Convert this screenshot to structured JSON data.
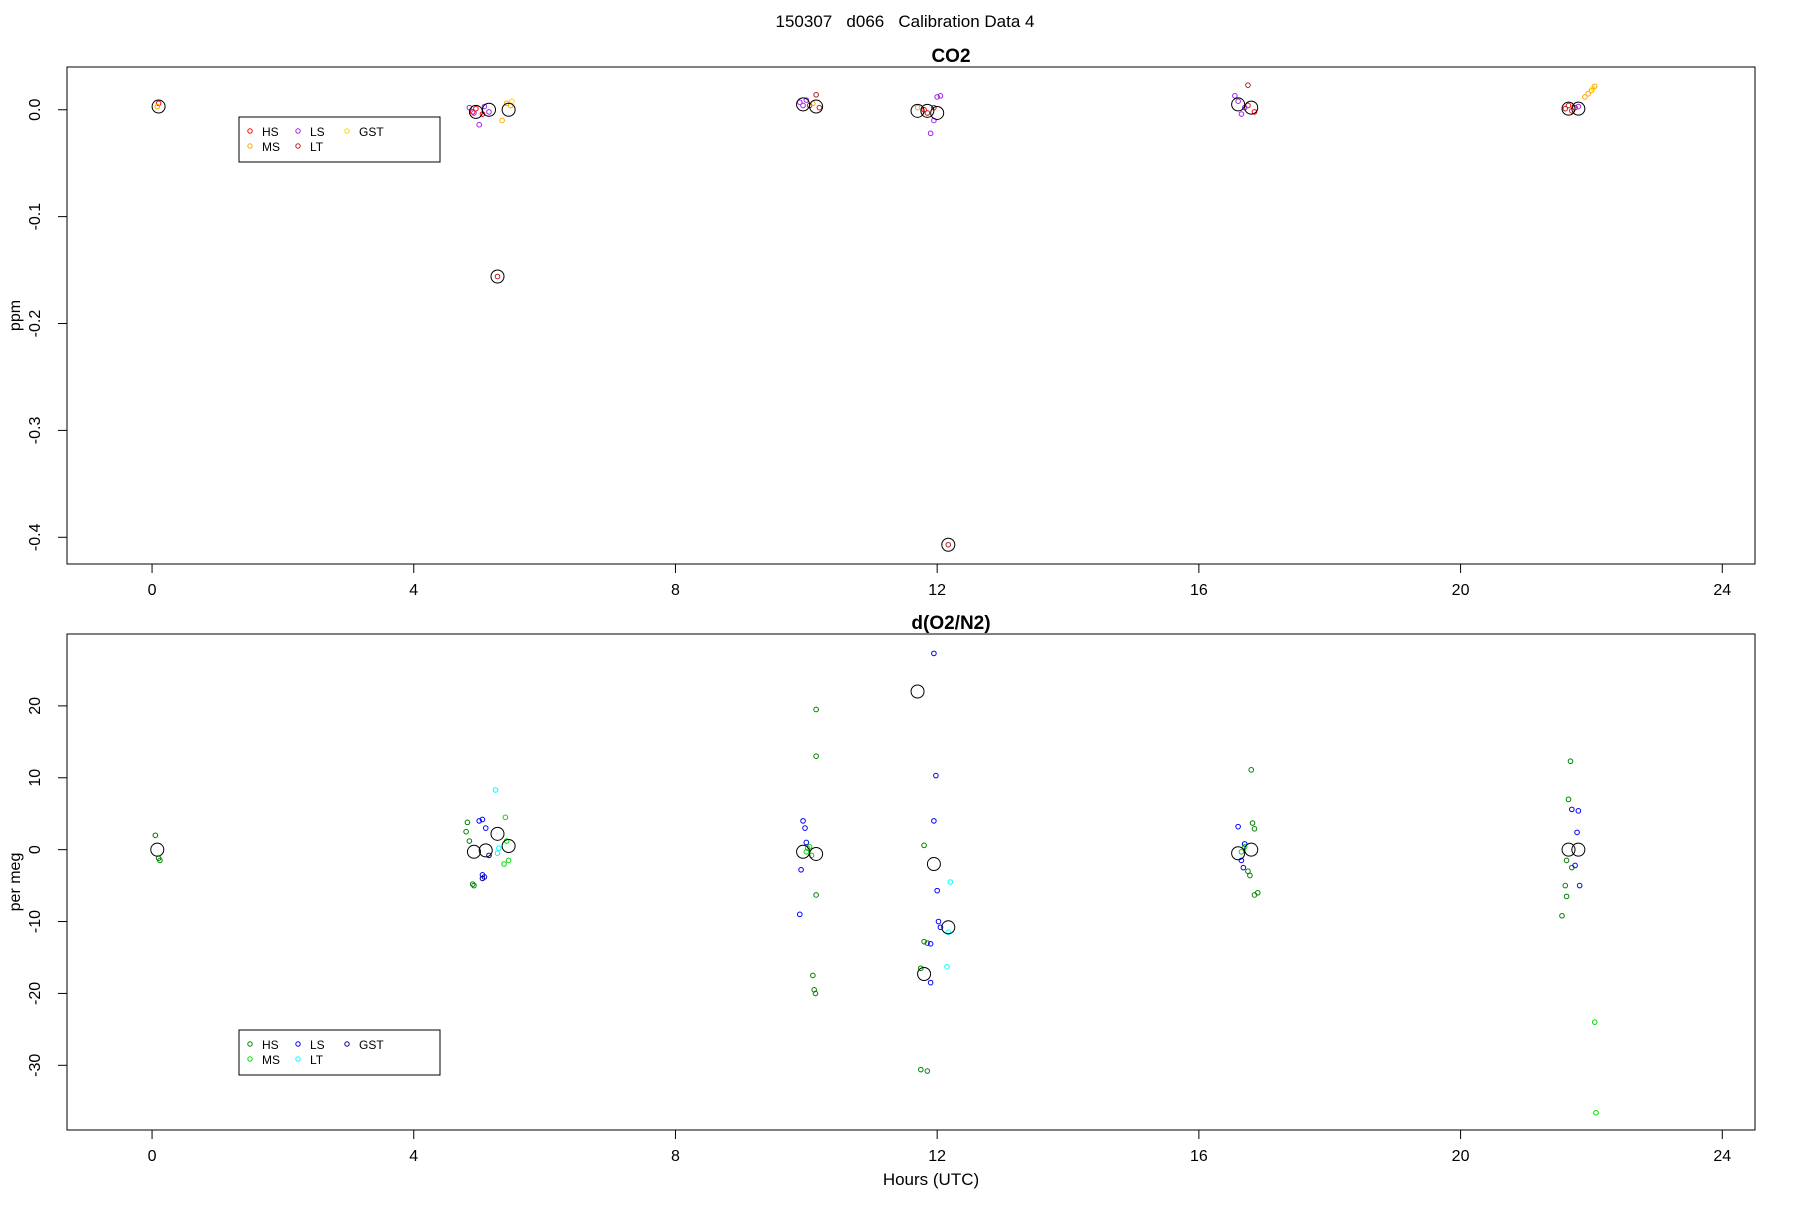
{
  "figure": {
    "title": "150307   d066   Calibration Data 4"
  },
  "chart_data": [
    {
      "type": "scatter",
      "title": "CO2",
      "xlabel": "",
      "ylabel": "ppm",
      "xlim": [
        -1.3,
        24.5
      ],
      "ylim": [
        -0.425,
        0.04
      ],
      "xticks": [
        0,
        4,
        8,
        12,
        16,
        20,
        24
      ],
      "xtick_labels": [
        "0",
        "4",
        "8",
        "12",
        "16",
        "20",
        "24"
      ],
      "yticks": [
        0.0,
        -0.1,
        -0.2,
        -0.3,
        -0.4
      ],
      "ytick_labels": [
        "0.0",
        "-0.1",
        "-0.2",
        "-0.3",
        "-0.4"
      ],
      "grid": false,
      "legend": {
        "placement": "top-left",
        "entries": [
          {
            "name": "HS",
            "color": "#ff0000"
          },
          {
            "name": "MS",
            "color": "#ffa500"
          },
          {
            "name": "LS",
            "color": "#a020f0"
          },
          {
            "name": "LT",
            "color": "#b22222"
          },
          {
            "name": "GST",
            "color": "#ffd700"
          }
        ]
      },
      "series": [
        {
          "name": "HS",
          "color": "#ff0000",
          "points": [
            [
              0.1,
              0.006
            ],
            [
              4.9,
              -0.002
            ],
            [
              4.95,
              0.001
            ],
            [
              5.05,
              -0.004
            ],
            [
              10.05,
              0.004
            ],
            [
              10.2,
              0.002
            ],
            [
              11.8,
              0.0
            ],
            [
              11.85,
              -0.003
            ],
            [
              11.95,
              0.002
            ],
            [
              16.75,
              0.004
            ],
            [
              16.85,
              -0.002
            ],
            [
              21.65,
              0.004
            ],
            [
              21.7,
              -0.001
            ],
            [
              21.75,
              0.002
            ]
          ]
        },
        {
          "name": "MS",
          "color": "#ffa500",
          "points": [
            [
              0.08,
              0.003
            ],
            [
              5.35,
              -0.01
            ],
            [
              5.42,
              0.006
            ],
            [
              5.48,
              0.004
            ],
            [
              10.1,
              0.006
            ],
            [
              11.7,
              0.002
            ],
            [
              21.9,
              0.012
            ],
            [
              21.95,
              0.015
            ],
            [
              22.0,
              0.018
            ],
            [
              22.05,
              0.022
            ]
          ]
        },
        {
          "name": "LS",
          "color": "#a020f0",
          "points": [
            [
              4.85,
              0.002
            ],
            [
              4.92,
              -0.003
            ],
            [
              5.0,
              -0.014
            ],
            [
              5.08,
              0.003
            ],
            [
              5.15,
              -0.002
            ],
            [
              9.9,
              0.007
            ],
            [
              9.95,
              0.004
            ],
            [
              10.0,
              0.009
            ],
            [
              11.9,
              -0.022
            ],
            [
              11.95,
              -0.01
            ],
            [
              12.0,
              0.012
            ],
            [
              12.05,
              0.013
            ],
            [
              16.55,
              0.013
            ],
            [
              16.6,
              0.008
            ],
            [
              16.65,
              -0.004
            ],
            [
              16.7,
              0.002
            ],
            [
              21.8,
              0.003
            ]
          ]
        },
        {
          "name": "LT",
          "color": "#b22222",
          "points": [
            [
              5.28,
              -0.156
            ],
            [
              10.15,
              0.014
            ],
            [
              12.17,
              -0.407
            ],
            [
              16.75,
              0.023
            ],
            [
              21.6,
              0.001
            ]
          ]
        },
        {
          "name": "GST",
          "color": "#ffd700",
          "points": [
            [
              5.5,
              0.008
            ],
            [
              22.02,
              0.02
            ]
          ]
        }
      ],
      "means": [
        [
          0.1,
          0.003
        ],
        [
          4.95,
          -0.002
        ],
        [
          5.15,
          0.0
        ],
        [
          5.28,
          -0.156
        ],
        [
          5.45,
          0.0
        ],
        [
          9.95,
          0.005
        ],
        [
          10.15,
          0.003
        ],
        [
          11.7,
          -0.001
        ],
        [
          11.85,
          -0.001
        ],
        [
          12.0,
          -0.003
        ],
        [
          12.17,
          -0.407
        ],
        [
          16.6,
          0.005
        ],
        [
          16.8,
          0.002
        ],
        [
          21.65,
          0.001
        ],
        [
          21.8,
          0.001
        ]
      ]
    },
    {
      "type": "scatter",
      "title": "d(O2/N2)",
      "xlabel": "Hours (UTC)",
      "ylabel": "per meg",
      "xlim": [
        -1.3,
        24.5
      ],
      "ylim": [
        -39,
        30
      ],
      "xticks": [
        0,
        4,
        8,
        12,
        16,
        20,
        24
      ],
      "xtick_labels": [
        "0",
        "4",
        "8",
        "12",
        "16",
        "20",
        "24"
      ],
      "yticks": [
        20,
        10,
        0,
        -10,
        -20,
        -30
      ],
      "ytick_labels": [
        "20",
        "10",
        "0",
        "-10",
        "-20",
        "-30"
      ],
      "grid": false,
      "legend": {
        "placement": "bottom-left",
        "entries": [
          {
            "name": "HS",
            "color": "#008000"
          },
          {
            "name": "MS",
            "color": "#00dd00"
          },
          {
            "name": "LS",
            "color": "#0000ff"
          },
          {
            "name": "LT",
            "color": "#00ffff"
          },
          {
            "name": "GST",
            "color": "#000099"
          }
        ]
      },
      "series": [
        {
          "name": "HS",
          "color": "#008000",
          "points": [
            [
              0.05,
              2.0
            ],
            [
              0.1,
              -1.2
            ],
            [
              0.12,
              -1.5
            ],
            [
              4.8,
              2.5
            ],
            [
              4.82,
              3.8
            ],
            [
              4.85,
              1.2
            ],
            [
              4.9,
              -4.8
            ],
            [
              4.92,
              -5.0
            ],
            [
              10.15,
              -6.3
            ],
            [
              10.15,
              13.0
            ],
            [
              10.15,
              19.5
            ],
            [
              10.1,
              -17.5
            ],
            [
              10.12,
              -19.5
            ],
            [
              10.14,
              -20.0
            ],
            [
              11.75,
              -30.6
            ],
            [
              11.85,
              -30.8
            ],
            [
              11.8,
              -12.8
            ],
            [
              11.85,
              -13.0
            ],
            [
              11.8,
              0.6
            ],
            [
              11.75,
              -16.5
            ],
            [
              16.85,
              -6.3
            ],
            [
              16.9,
              -6.0
            ],
            [
              16.8,
              11.1
            ],
            [
              16.82,
              3.7
            ],
            [
              16.85,
              2.9
            ],
            [
              16.75,
              -3.0
            ],
            [
              16.78,
              -3.6
            ],
            [
              21.6,
              -5.0
            ],
            [
              21.62,
              -6.5
            ],
            [
              21.55,
              -9.2
            ],
            [
              21.65,
              7.0
            ],
            [
              21.68,
              12.3
            ],
            [
              21.7,
              -2.5
            ],
            [
              21.62,
              -1.5
            ]
          ]
        },
        {
          "name": "MS",
          "color": "#00dd00",
          "points": [
            [
              5.4,
              4.5
            ],
            [
              5.42,
              1.2
            ],
            [
              5.38,
              -2.0
            ],
            [
              5.45,
              -1.5
            ],
            [
              10.05,
              0.4
            ],
            [
              10.0,
              -0.3
            ],
            [
              10.08,
              -0.8
            ],
            [
              10.02,
              0.2
            ],
            [
              22.05,
              -24.0
            ],
            [
              22.07,
              -36.6
            ],
            [
              16.65,
              -0.3
            ],
            [
              16.7,
              0.4
            ]
          ]
        },
        {
          "name": "LS",
          "color": "#0000ff",
          "points": [
            [
              5.0,
              4.0
            ],
            [
              5.05,
              4.2
            ],
            [
              5.1,
              3.0
            ],
            [
              5.05,
              -3.5
            ],
            [
              5.08,
              -3.8
            ],
            [
              9.9,
              -9.0
            ],
            [
              9.95,
              4.0
            ],
            [
              9.98,
              3.0
            ],
            [
              10.0,
              1.0
            ],
            [
              9.92,
              -2.8
            ],
            [
              11.95,
              27.3
            ],
            [
              11.98,
              10.3
            ],
            [
              11.95,
              4.0
            ],
            [
              12.0,
              -5.7
            ],
            [
              12.02,
              -10.0
            ],
            [
              12.05,
              -10.8
            ],
            [
              11.9,
              -13.1
            ],
            [
              11.9,
              -18.5
            ],
            [
              16.6,
              3.2
            ],
            [
              16.65,
              -1.5
            ],
            [
              16.68,
              -2.5
            ],
            [
              16.7,
              0.8
            ],
            [
              21.8,
              5.4
            ],
            [
              21.78,
              2.4
            ],
            [
              21.82,
              -5.0
            ],
            [
              21.75,
              -2.2
            ],
            [
              21.7,
              5.6
            ]
          ]
        },
        {
          "name": "LT",
          "color": "#00ffff",
          "points": [
            [
              5.25,
              8.3
            ],
            [
              5.28,
              -0.5
            ],
            [
              5.3,
              0.2
            ],
            [
              12.15,
              -16.3
            ],
            [
              12.2,
              -4.5
            ],
            [
              12.17,
              -11.5
            ]
          ]
        },
        {
          "name": "GST",
          "color": "#000099",
          "points": [
            [
              5.05,
              -4.0
            ],
            [
              5.15,
              -0.8
            ]
          ]
        }
      ],
      "means": [
        [
          0.08,
          0.0
        ],
        [
          4.92,
          -0.3
        ],
        [
          5.1,
          -0.1
        ],
        [
          5.28,
          2.2
        ],
        [
          5.45,
          0.5
        ],
        [
          9.95,
          -0.3
        ],
        [
          10.15,
          -0.6
        ],
        [
          11.7,
          22.0
        ],
        [
          11.8,
          -17.3
        ],
        [
          11.95,
          -2.0
        ],
        [
          12.17,
          -10.8
        ],
        [
          16.6,
          -0.5
        ],
        [
          16.8,
          0.0
        ],
        [
          21.65,
          0.0
        ],
        [
          21.8,
          0.0
        ]
      ]
    }
  ]
}
